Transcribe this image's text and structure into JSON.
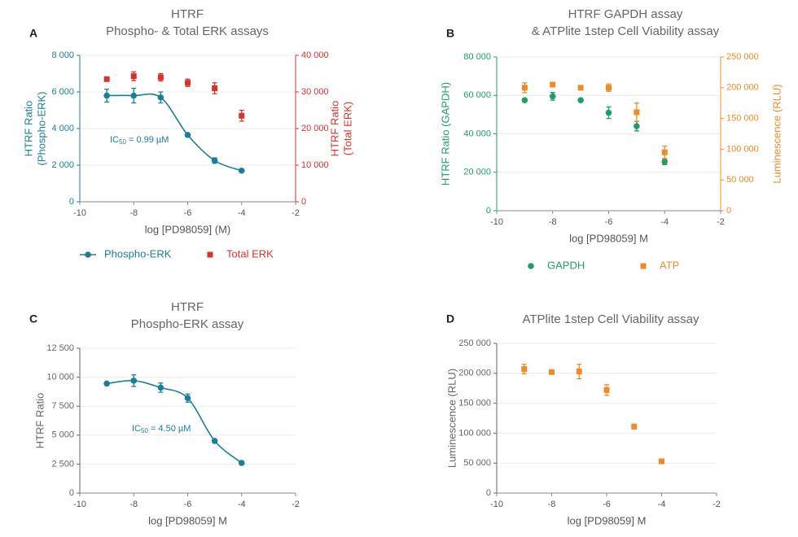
{
  "chart_data": [
    {
      "type": "line",
      "panel": "A",
      "title": [
        "HTRF",
        "Phospho- & Total ERK assays"
      ],
      "xlabel": "log [PD98059] (M)",
      "ylabel": [
        "HTRF Ratio",
        "(Phospho-ERK)"
      ],
      "y2label": [
        "HTRF Ratio",
        "(Total ERK)"
      ],
      "ycolor": "#1a7f96",
      "y2color": "#d9312b",
      "x": [
        -9,
        -8,
        -7,
        -6,
        -5,
        -4
      ],
      "xlim": [
        -10,
        -2
      ],
      "xticks": [
        -10,
        -8,
        -6,
        -4,
        -2
      ],
      "ylim": [
        0,
        8000
      ],
      "yticks": [
        0,
        {
          "value": 2000,
          "label": "2 000"
        },
        {
          "value": 4000,
          "label": "4 000"
        },
        {
          "value": 6000,
          "label": "6 000"
        },
        {
          "value": 8000,
          "label": "8 000"
        }
      ],
      "y2lim": [
        0,
        40000
      ],
      "y2ticks": [
        0,
        {
          "value": 10000,
          "label": "10 000"
        },
        {
          "value": 20000,
          "label": "20 000"
        },
        {
          "value": 30000,
          "label": "30 000"
        },
        {
          "value": 40000,
          "label": "40 000"
        }
      ],
      "grid": true,
      "legend": "bottom",
      "annotation": {
        "text": "IC",
        "sub": "50",
        "rest": " = 0.99 µM"
      },
      "series": [
        {
          "name": "Phospho-ERK",
          "color": "#1a7f96",
          "marker": "circle",
          "line": true,
          "values": [
            5800,
            5800,
            5700,
            3650,
            2250,
            1700
          ],
          "errors": [
            350,
            400,
            300,
            100,
            150,
            null
          ]
        },
        {
          "name": "Total ERK",
          "color": "#d9312b",
          "marker": "square",
          "line": false,
          "axis": "y2",
          "values": [
            33500,
            34300,
            34000,
            32500,
            31000,
            23500
          ],
          "errors": [
            null,
            1200,
            1000,
            1000,
            1500,
            1500
          ]
        }
      ]
    },
    {
      "type": "scatter",
      "panel": "B",
      "title": [
        "HTRF GAPDH assay",
        "& ATPlite 1step Cell Viability assay"
      ],
      "xlabel": "log [PD98059] M",
      "ylabel": [
        "HTRF Ratio (GAPDH)"
      ],
      "y2label": [
        "Luminescence (RLU)"
      ],
      "ycolor": "#1f9e68",
      "y2color": "#f08a24",
      "x": [
        -9,
        -8,
        -7,
        -6,
        -5,
        -4
      ],
      "xlim": [
        -10,
        -2
      ],
      "xticks": [
        -10,
        -8,
        -6,
        -4,
        -2
      ],
      "ylim": [
        0,
        80000
      ],
      "yticks": [
        0,
        {
          "value": 20000,
          "label": "20 000"
        },
        {
          "value": 40000,
          "label": "40 000"
        },
        {
          "value": 60000,
          "label": "60 000"
        },
        {
          "value": 80000,
          "label": "80 000"
        }
      ],
      "y2lim": [
        0,
        250000
      ],
      "y2ticks": [
        0,
        {
          "value": 50000,
          "label": "50 000"
        },
        {
          "value": 100000,
          "label": "100 000"
        },
        {
          "value": 150000,
          "label": "150 000"
        },
        {
          "value": 200000,
          "label": "200 000"
        },
        {
          "value": 250000,
          "label": "250 000"
        }
      ],
      "grid": true,
      "legend": "bottom",
      "series": [
        {
          "name": "GAPDH",
          "color": "#1f9e68",
          "marker": "circle",
          "line": false,
          "values": [
            57500,
            59500,
            57500,
            51000,
            44000,
            25500
          ],
          "errors": [
            null,
            2000,
            null,
            3000,
            2500,
            1500
          ]
        },
        {
          "name": "ATP",
          "color": "#f08a24",
          "marker": "square",
          "line": false,
          "axis": "y2",
          "values": [
            200000,
            205000,
            200000,
            200000,
            160000,
            95000
          ],
          "errors": [
            8000,
            null,
            null,
            6000,
            15000,
            10000
          ]
        }
      ]
    },
    {
      "type": "line",
      "panel": "C",
      "title": [
        "HTRF",
        "Phospho-ERK assay"
      ],
      "xlabel": "log [PD98059] M",
      "ylabel": [
        "HTRF Ratio"
      ],
      "ycolor": "#666666",
      "x": [
        -9,
        -8,
        -7,
        -6,
        -5,
        -4
      ],
      "xlim": [
        -10,
        -2
      ],
      "xticks": [
        -10,
        -8,
        -6,
        -4,
        -2
      ],
      "ylim": [
        0,
        12500
      ],
      "yticks": [
        0,
        {
          "value": 2500,
          "label": "2 500"
        },
        {
          "value": 5000,
          "label": "5 000"
        },
        {
          "value": 7500,
          "label": "7 500"
        },
        {
          "value": 10000,
          "label": "10 000"
        },
        {
          "value": 12500,
          "label": "12 500"
        }
      ],
      "grid": true,
      "annotation": {
        "text": "IC",
        "sub": "50",
        "rest": " = 4.50 µM"
      },
      "series": [
        {
          "color": "#1a7f96",
          "marker": "circle",
          "line": true,
          "values": [
            9450,
            9700,
            9100,
            8200,
            4500,
            2600
          ],
          "errors": [
            null,
            500,
            400,
            350,
            null,
            null
          ]
        }
      ]
    },
    {
      "type": "scatter",
      "panel": "D",
      "title": [
        "ATPlite 1step Cell Viability assay"
      ],
      "xlabel": "log [PD98059] M",
      "ylabel": [
        "Luminescence (RLU)"
      ],
      "ycolor": "#666666",
      "x": [
        -9,
        -8,
        -7,
        -6,
        -5,
        -4
      ],
      "xlim": [
        -10,
        -2
      ],
      "xticks": [
        -10,
        -8,
        -6,
        -4,
        -2
      ],
      "ylim": [
        0,
        250000
      ],
      "yticks": [
        0,
        {
          "value": 50000,
          "label": "50 000"
        },
        {
          "value": 100000,
          "label": "100 000"
        },
        {
          "value": 150000,
          "label": "150 000"
        },
        {
          "value": 200000,
          "label": "200 000"
        },
        {
          "value": 250000,
          "label": "250 000"
        }
      ],
      "grid": true,
      "series": [
        {
          "color": "#f08a24",
          "marker": "square",
          "line": false,
          "values": [
            207000,
            202000,
            203000,
            172000,
            111000,
            53000
          ],
          "errors": [
            8000,
            null,
            12000,
            9000,
            4000,
            null
          ]
        }
      ]
    }
  ]
}
